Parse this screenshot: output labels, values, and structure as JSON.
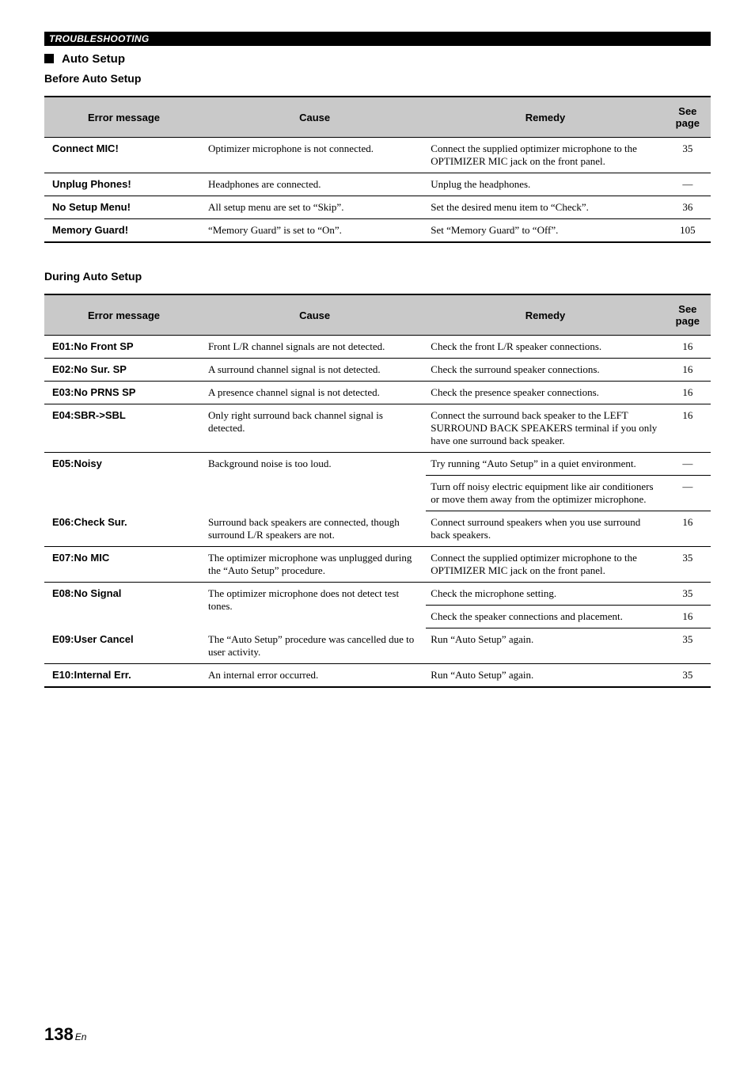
{
  "chapter": "TROUBLESHOOTING",
  "section": "Auto Setup",
  "tables": {
    "before": {
      "title": "Before Auto Setup",
      "headers": {
        "err": "Error message",
        "cause": "Cause",
        "remedy": "Remedy",
        "page": "See page"
      },
      "rows": [
        {
          "err": "Connect MIC!",
          "cause": "Optimizer microphone is not connected.",
          "remedy": "Connect the supplied optimizer microphone to the OPTIMIZER MIC jack on the front panel.",
          "page": "35"
        },
        {
          "err": "Unplug Phones!",
          "cause": "Headphones are connected.",
          "remedy": "Unplug the headphones.",
          "page": "—"
        },
        {
          "err": "No Setup Menu!",
          "cause": "All setup menu are set to “Skip”.",
          "remedy": "Set the desired menu item to “Check”.",
          "page": "36"
        },
        {
          "err": "Memory Guard!",
          "cause": "“Memory Guard” is set to “On”.",
          "remedy": "Set “Memory Guard” to “Off”.",
          "page": "105"
        }
      ]
    },
    "during": {
      "title": "During Auto Setup",
      "headers": {
        "err": "Error message",
        "cause": "Cause",
        "remedy": "Remedy",
        "page": "See page"
      },
      "rows": [
        {
          "err": "E01:No Front SP",
          "cause": "Front L/R channel signals are not detected.",
          "remedy": "Check the front L/R speaker connections.",
          "page": "16"
        },
        {
          "err": "E02:No Sur. SP",
          "cause": "A surround channel signal is not detected.",
          "remedy": "Check the surround speaker connections.",
          "page": "16"
        },
        {
          "err": "E03:No PRNS SP",
          "cause": "A presence channel signal is not detected.",
          "remedy": "Check the presence speaker connections.",
          "page": "16"
        },
        {
          "err": "E04:SBR->SBL",
          "cause": "Only right surround back channel signal is detected.",
          "remedy": "Connect the surround back speaker to the LEFT SURROUND BACK SPEAKERS terminal if you only have one surround back speaker.",
          "page": "16"
        },
        {
          "err": "E05:Noisy",
          "cause": "Background noise is too loud.",
          "remedy1": "Try running “Auto Setup” in a quiet environment.",
          "page1": "—",
          "remedy2": "Turn off noisy electric equipment like air conditioners or move them away from the optimizer microphone.",
          "page2": "—"
        },
        {
          "err": "E06:Check Sur.",
          "cause": "Surround back speakers are connected, though surround L/R speakers are not.",
          "remedy": "Connect surround speakers when you use surround back speakers.",
          "page": "16"
        },
        {
          "err": "E07:No MIC",
          "cause": "The optimizer microphone was unplugged during the “Auto Setup” procedure.",
          "remedy": "Connect the supplied optimizer microphone to the OPTIMIZER MIC jack on the front panel.",
          "page": "35"
        },
        {
          "err": "E08:No Signal",
          "cause": "The optimizer microphone does not detect test tones.",
          "remedy1": "Check the microphone setting.",
          "page1": "35",
          "remedy2": "Check the speaker connections and placement.",
          "page2": "16"
        },
        {
          "err": "E09:User Cancel",
          "cause": "The “Auto Setup” procedure was cancelled due to user activity.",
          "remedy": "Run “Auto Setup” again.",
          "page": "35"
        },
        {
          "err": "E10:Internal Err.",
          "cause": "An internal error occurred.",
          "remedy": "Run “Auto Setup” again.",
          "page": "35"
        }
      ]
    }
  },
  "pageNumber": {
    "big": "138",
    "small": "En"
  }
}
